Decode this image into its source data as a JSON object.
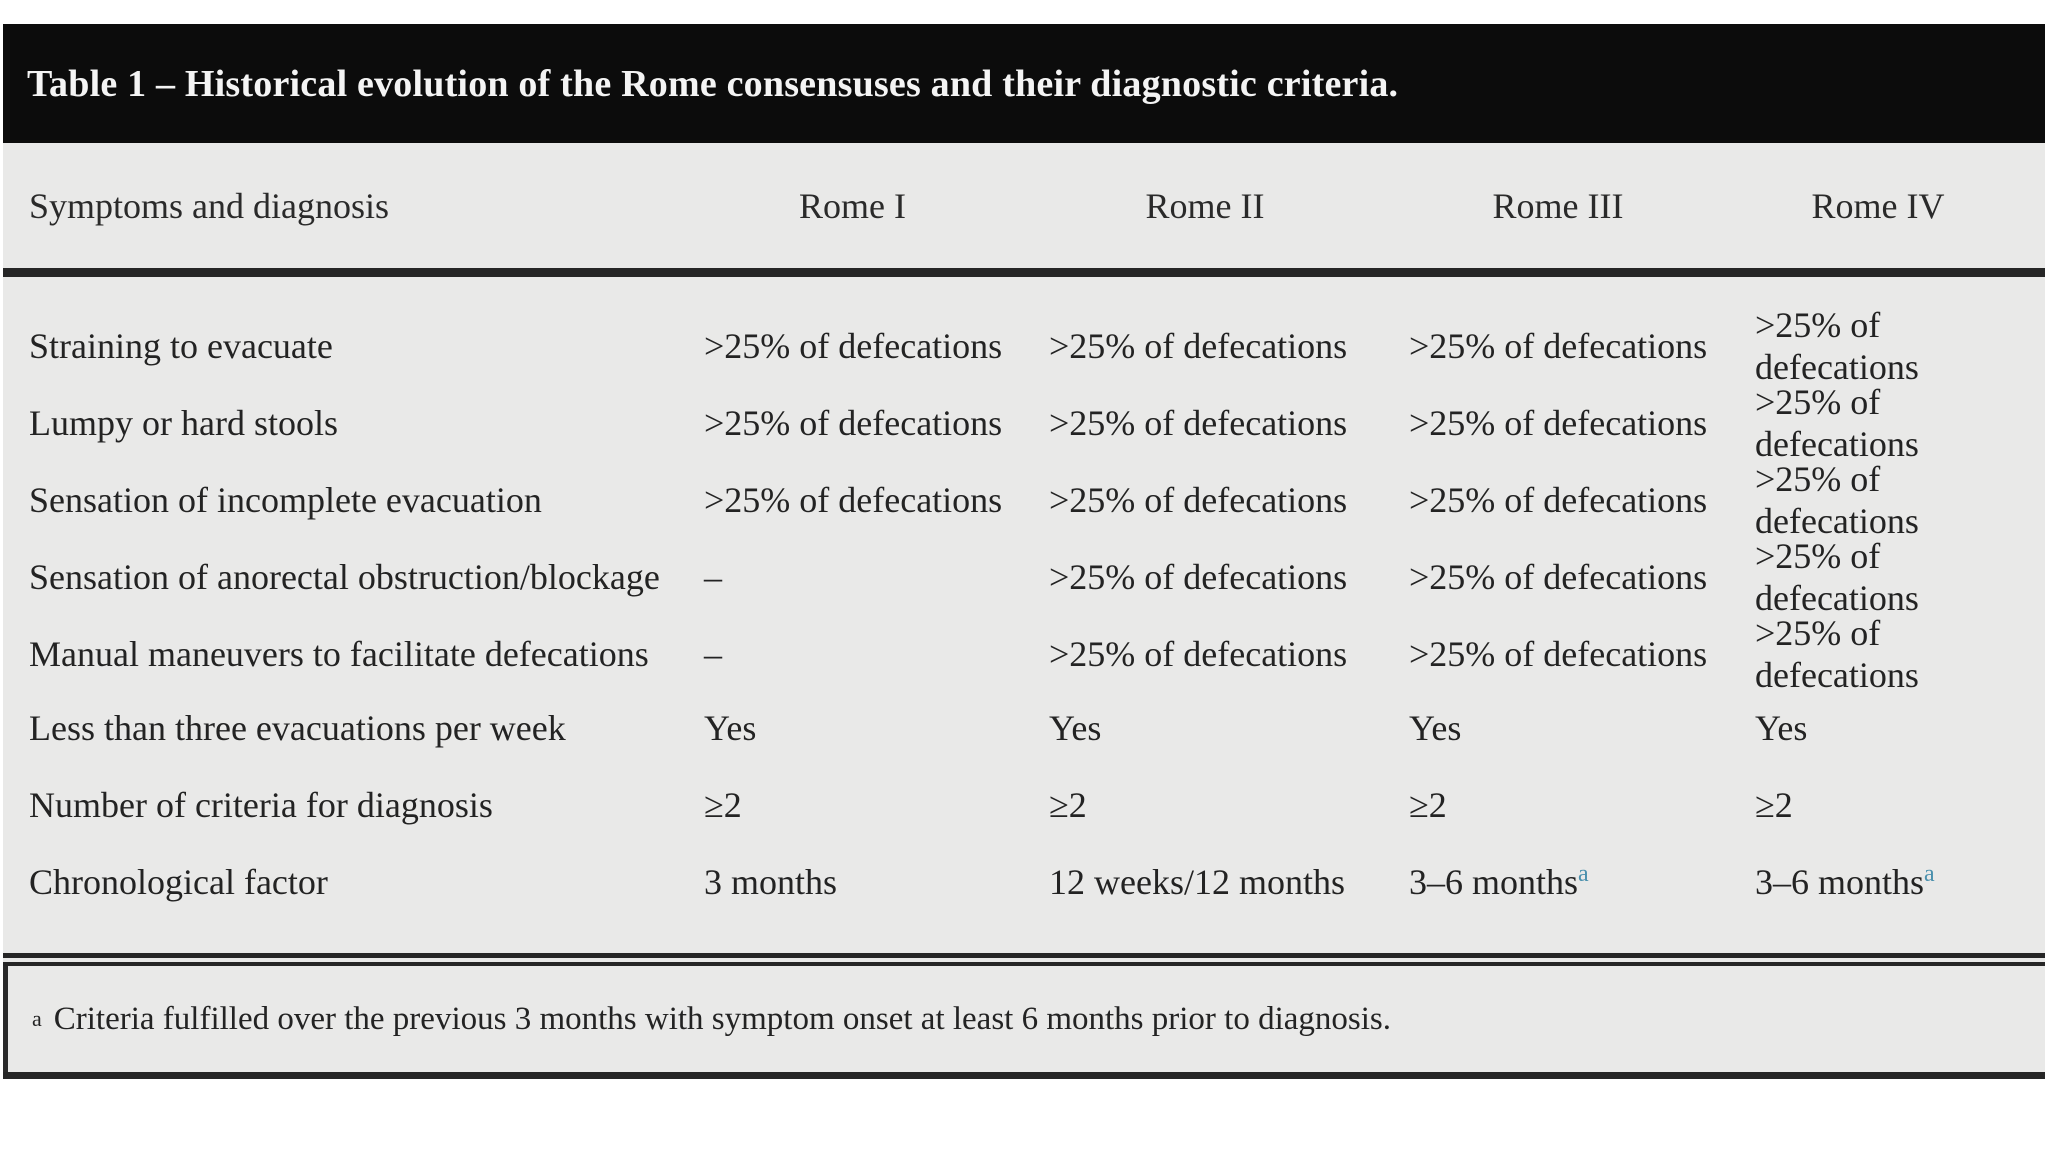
{
  "table": {
    "title": "Table 1 – Historical evolution of the Rome consensuses and their diagnostic criteria.",
    "columns": {
      "label": "Symptoms and diagnosis",
      "rome1": "Rome I",
      "rome2": "Rome II",
      "rome3": "Rome III",
      "rome4": "Rome IV"
    },
    "rows": [
      {
        "label": "Straining to evacuate",
        "values": [
          ">25% of defecations",
          ">25% of defecations",
          ">25% of defecations",
          ">25% of defecations"
        ]
      },
      {
        "label": "Lumpy or hard stools",
        "values": [
          ">25% of defecations",
          ">25% of defecations",
          ">25% of defecations",
          ">25% of defecations"
        ]
      },
      {
        "label": "Sensation of incomplete evacuation",
        "values": [
          ">25% of defecations",
          ">25% of defecations",
          ">25% of defecations",
          ">25% of defecations"
        ]
      },
      {
        "label": "Sensation of anorectal obstruction/blockage",
        "values": [
          "–",
          ">25% of defecations",
          ">25% of defecations",
          ">25% of defecations"
        ]
      },
      {
        "label": "Manual maneuvers to facilitate defecations",
        "values": [
          "–",
          ">25% of defecations",
          ">25% of defecations",
          ">25% of defecations"
        ]
      },
      {
        "label": "Less than three evacuations per week",
        "values": [
          "Yes",
          "Yes",
          "Yes",
          "Yes"
        ]
      },
      {
        "label": "Number of criteria for diagnosis",
        "values": [
          "≥2",
          "≥2",
          "≥2",
          "≥2"
        ]
      },
      {
        "label": "Chronological factor",
        "values": [
          "3 months",
          "12 weeks/12 months",
          "3–6 months",
          "3–6 months"
        ],
        "sup": "a"
      }
    ],
    "footnote": {
      "marker": "a",
      "text": "Criteria fulfilled over the previous 3 months with symptom onset at least 6 months prior to diagnosis."
    }
  },
  "colors": {
    "title_bg": "#0c0c0c",
    "title_text": "#f4f4f4",
    "body_bg": "#e9e9e8",
    "text": "#232323",
    "rule": "#262626",
    "superscript_accent": "#4a90ad",
    "page_bg": "#ffffff"
  }
}
